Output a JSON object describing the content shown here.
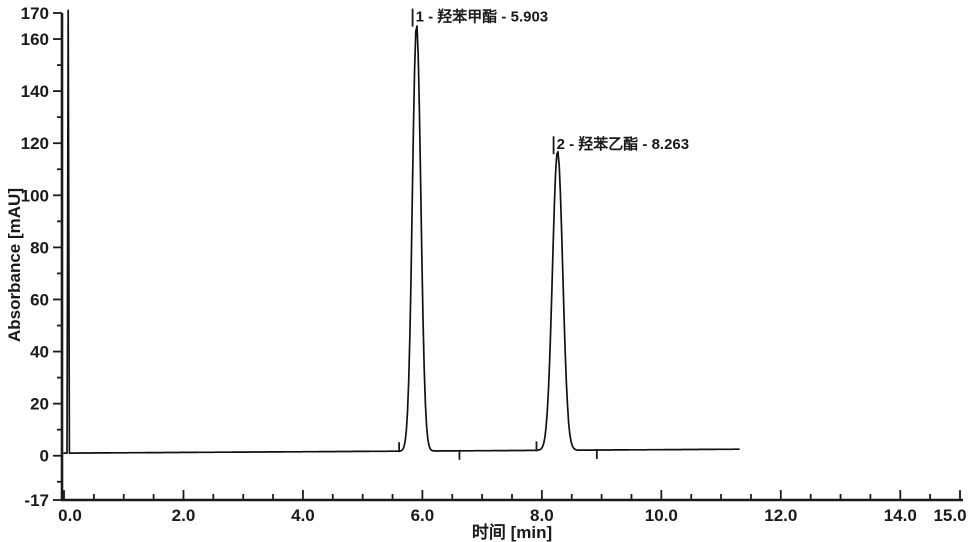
{
  "figure": {
    "background": "#fefefe",
    "ink_color": "#1a1a1a",
    "trace_color": "#111111"
  },
  "chart_data": {
    "type": "line",
    "title": "",
    "xlabel": "时间 [min]",
    "ylabel": "Absorbance [mAU]",
    "xlim": [
      0,
      15
    ],
    "ylim": [
      -17,
      170
    ],
    "grid": false,
    "legend": "none",
    "x_major_tick_values": [
      0,
      2,
      4,
      6,
      8,
      10,
      12,
      14,
      15
    ],
    "x_major_tick_labels": [
      "0.0",
      "2.0",
      "4.0",
      "6.0",
      "8.0",
      "10.0",
      "12.0",
      "14.0",
      "15.0"
    ],
    "x_minor_tick_step": 0.5,
    "y_tick_values": [
      170,
      160,
      140,
      120,
      100,
      80,
      60,
      40,
      20,
      0,
      -17
    ],
    "y_tick_labels": [
      "170",
      "160",
      "140",
      "120",
      "100",
      "80",
      "60",
      "40",
      "20",
      "0",
      "-17"
    ],
    "y_minor_tick_step": 10,
    "baseline_mau": {
      "start": 1.0,
      "end": 2.5
    },
    "trace_end_min": 11.3,
    "injection_spike": {
      "time_min": 0.07,
      "height_mau": 171,
      "width_min": 0.02
    },
    "peaks": [
      {
        "index": 1,
        "name": "羟苯甲酯",
        "retention_min": 5.903,
        "height_mau": 164,
        "sigma_min": 0.07,
        "label": "1 - 羟苯甲酯 - 5.903"
      },
      {
        "index": 2,
        "name": "羟苯乙酯",
        "retention_min": 8.263,
        "height_mau": 115,
        "sigma_min": 0.085,
        "label": "2 - 羟苯乙酯 - 8.263"
      }
    ],
    "integration_marks": {
      "start_ticks_min": [
        5.61,
        7.91
      ],
      "end_ticks_min": [
        6.62,
        8.92
      ]
    }
  }
}
